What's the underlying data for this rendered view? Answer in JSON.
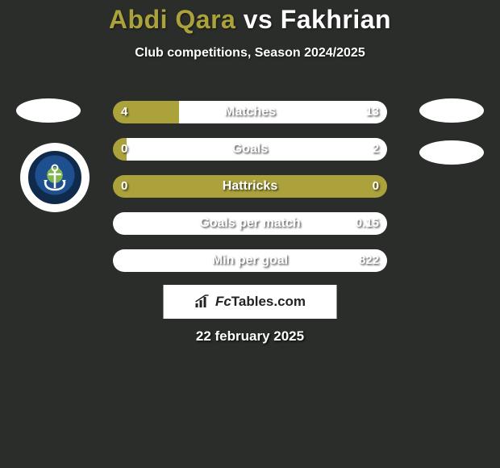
{
  "title": {
    "player1": "Abdi Qara",
    "vs": "vs",
    "player2": "Fakhrian"
  },
  "subtitle": "Club competitions, Season 2024/2025",
  "colors": {
    "p1": "#aba23b",
    "p2": "#ffffff",
    "background": "#2a2d2a",
    "text": "#ffffff"
  },
  "bars": [
    {
      "label": "Matches",
      "left_val": "4",
      "right_val": "13",
      "left_pct": 24,
      "right_pct": 76
    },
    {
      "label": "Goals",
      "left_val": "0",
      "right_val": "2",
      "left_pct": 5,
      "right_pct": 95
    },
    {
      "label": "Hattricks",
      "left_val": "0",
      "right_val": "0",
      "left_pct": 100,
      "right_pct": 0,
      "full_left": true
    },
    {
      "label": "Goals per match",
      "left_val": "",
      "right_val": "0.15",
      "left_pct": 0,
      "right_pct": 100,
      "full_right": true
    },
    {
      "label": "Min per goal",
      "left_val": "",
      "right_val": "822",
      "left_pct": 0,
      "right_pct": 100,
      "full_right": true
    }
  ],
  "bar_style": {
    "height": 28,
    "gap": 18,
    "radius": 14,
    "label_fontsize": 16,
    "value_fontsize": 15
  },
  "footer": {
    "brand_prefix": "Fc",
    "brand_suffix": "Tables.com"
  },
  "date": "22 february 2025"
}
